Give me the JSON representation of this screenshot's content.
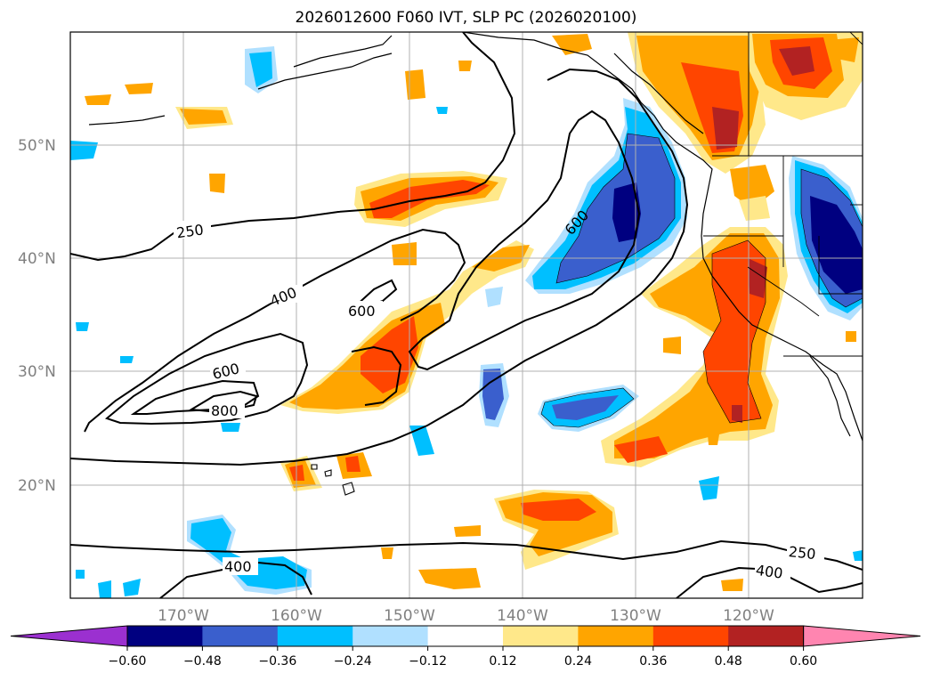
{
  "title": "2026012600 F060 IVT, SLP PC (2026020100)",
  "map": {
    "lat_labels": [
      "50°N",
      "40°N",
      "30°N",
      "20°N"
    ],
    "lon_labels": [
      "170°W",
      "160°W",
      "150°W",
      "140°W",
      "130°W",
      "120°W"
    ],
    "contour_labels": [
      "250",
      "400",
      "600",
      "600",
      "800",
      "600",
      "250",
      "400",
      "400"
    ]
  },
  "colorbar": {
    "ticks": [
      "−0.60",
      "−0.48",
      "−0.36",
      "−0.24",
      "−0.12",
      "0.12",
      "0.24",
      "0.36",
      "0.48",
      "0.60"
    ],
    "colors": [
      "#9b30d0",
      "#000080",
      "#3a5fcd",
      "#00bfff",
      "#b0e0ff",
      "#ffffff",
      "#ffe88a",
      "#ffa500",
      "#ff4500",
      "#b22222",
      "#ff85b0"
    ],
    "extend": "both"
  }
}
